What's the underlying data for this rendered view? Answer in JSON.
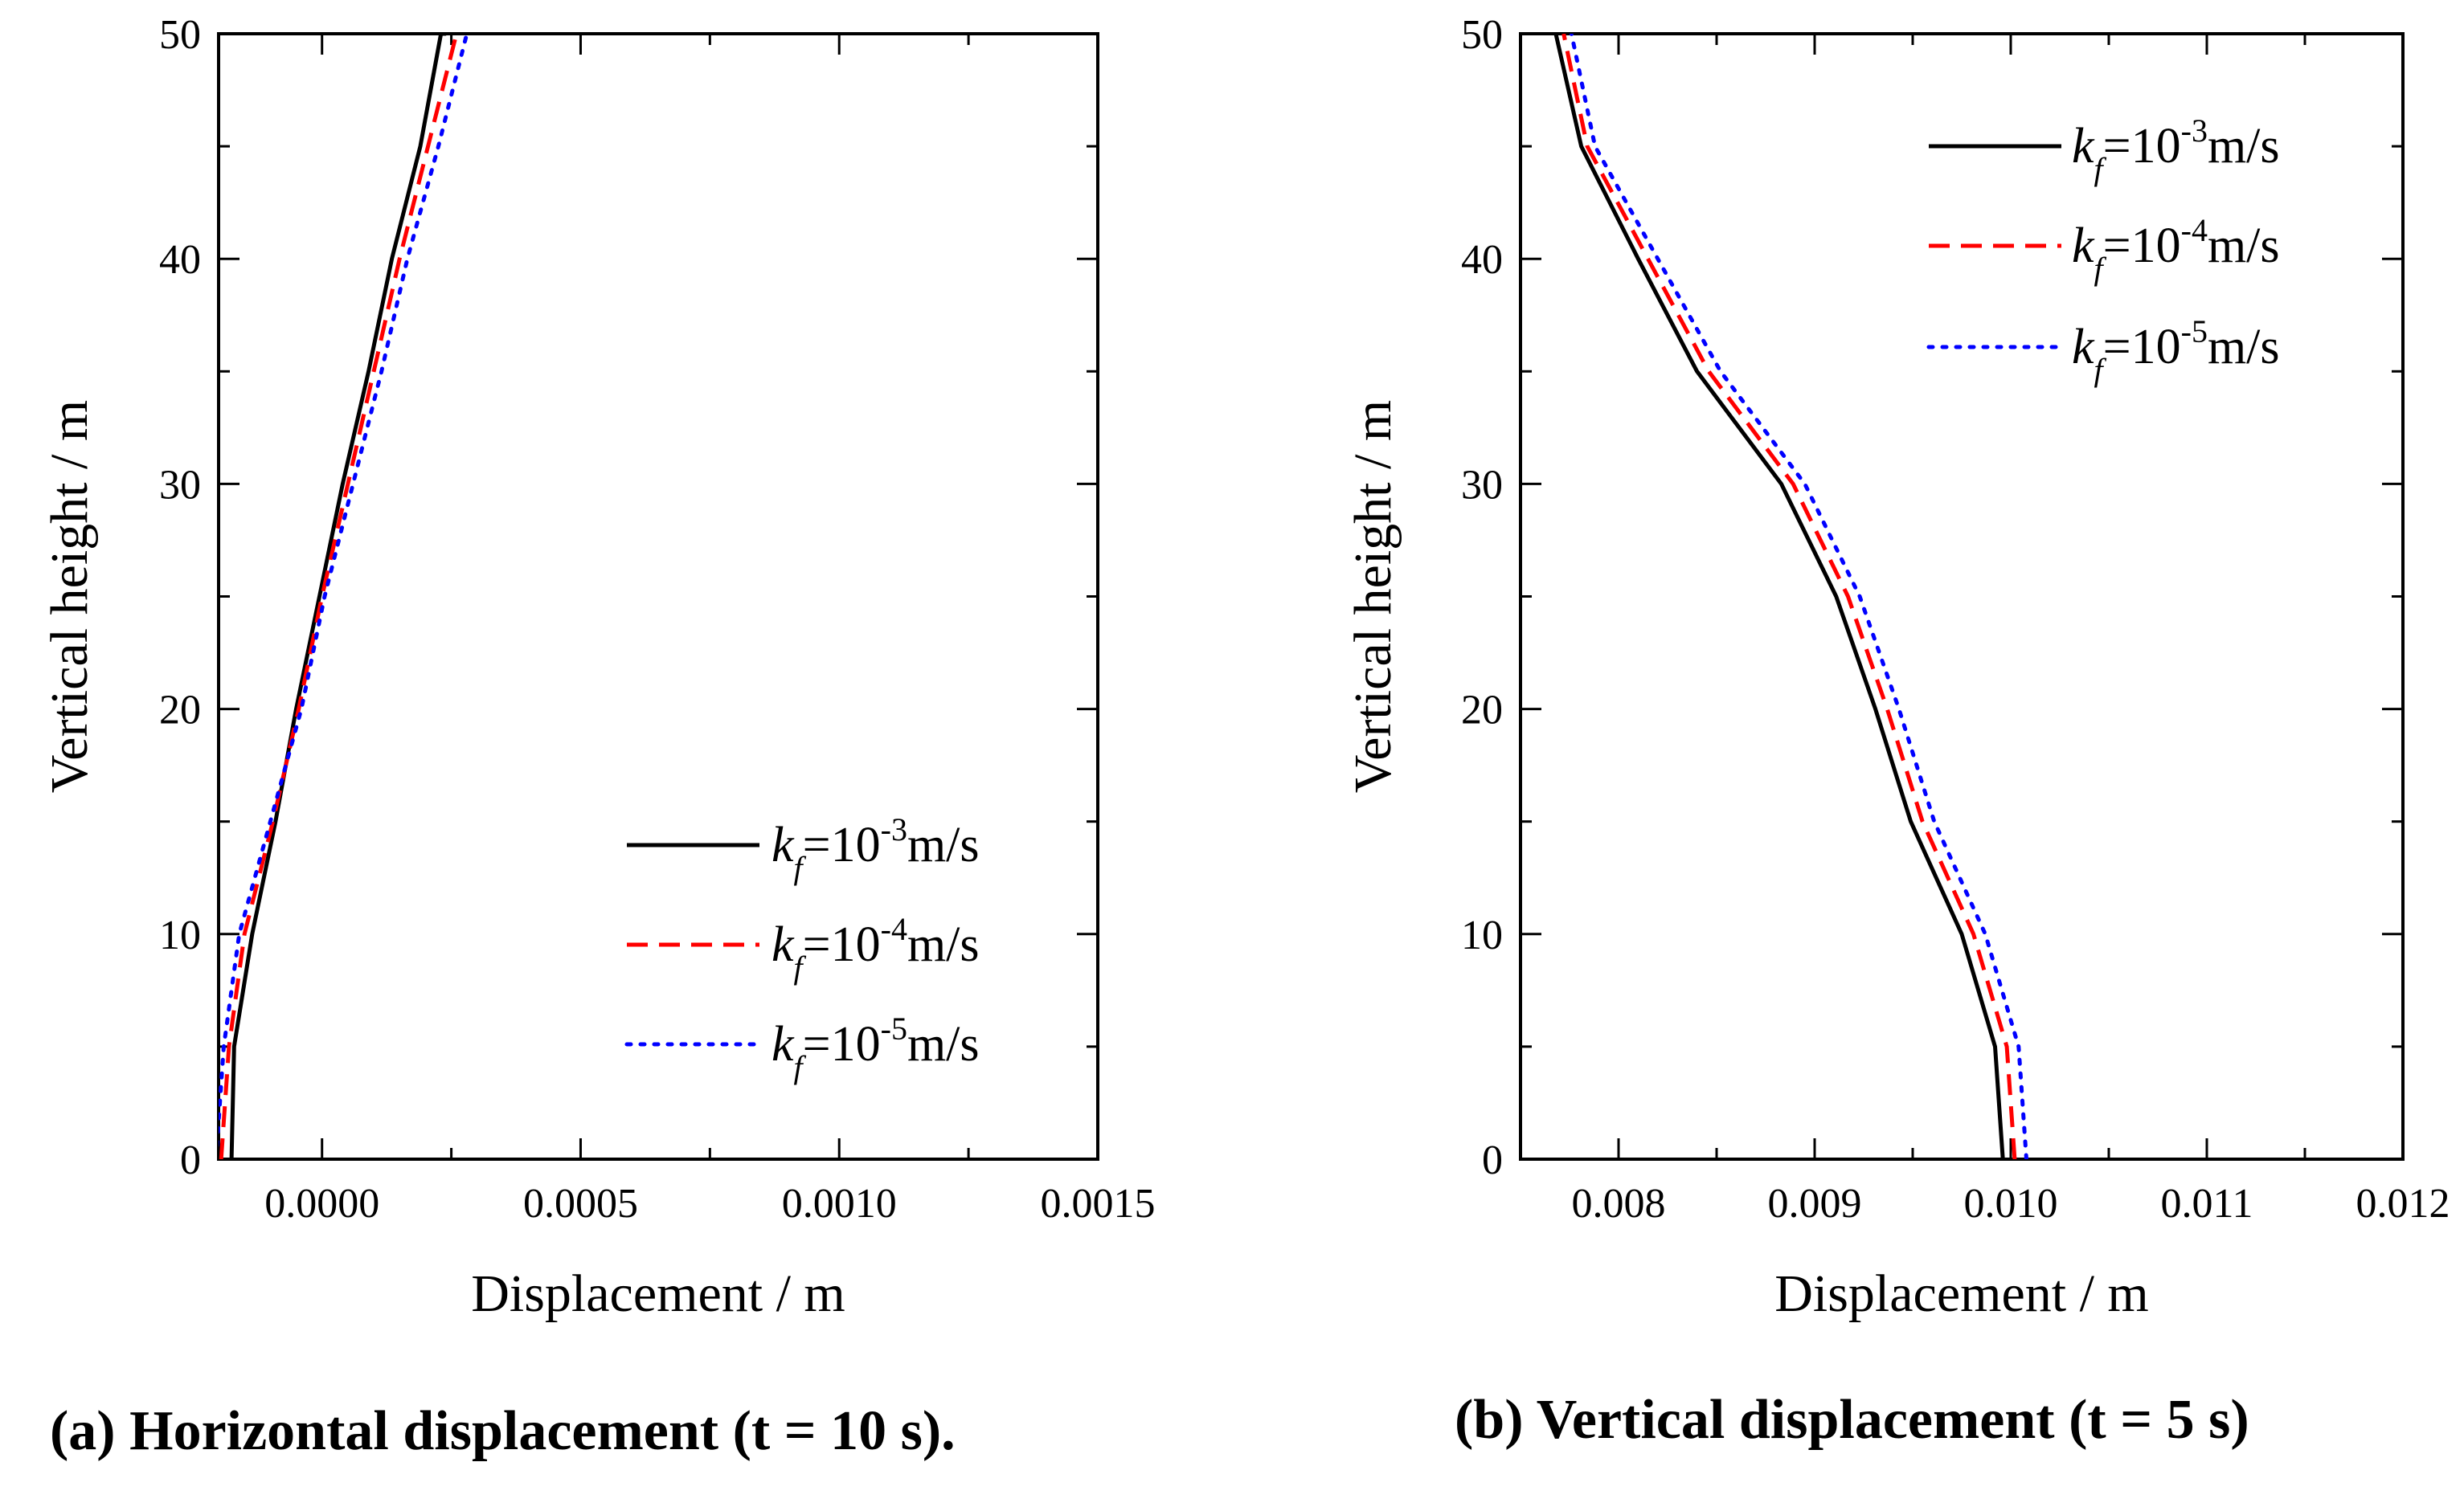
{
  "colors": {
    "black": "#000000",
    "red": "#ff0000",
    "blue": "#0000ff"
  },
  "legend_labels": [
    {
      "prefix": "k",
      "sub": "f",
      "base": "=10",
      "exp": "-3",
      "unit": "m/s"
    },
    {
      "prefix": "k",
      "sub": "f",
      "base": "=10",
      "exp": "-4",
      "unit": "m/s"
    },
    {
      "prefix": "k",
      "sub": "f",
      "base": "=10",
      "exp": "-5",
      "unit": "m/s"
    }
  ],
  "chart_data": [
    {
      "type": "line",
      "caption": "(a) Horizontal displacement (t = 10 s).",
      "xlabel": "Displacement / m",
      "ylabel": "Vertical height / m",
      "xlim": [
        -0.0002,
        0.0015
      ],
      "ylim": [
        0,
        50
      ],
      "xticks": [
        "0.0000",
        "0.0005",
        "0.0010",
        "0.0015"
      ],
      "xtick_values": [
        0.0,
        0.0005,
        0.001,
        0.0015
      ],
      "yticks": [
        "0",
        "10",
        "20",
        "30",
        "40",
        "50"
      ],
      "ytick_values": [
        0,
        10,
        20,
        30,
        40,
        50
      ],
      "legend_position": "bottom-right",
      "series": [
        {
          "name": "k_f=10^-3 m/s",
          "style": "solid",
          "color": "#000000",
          "x": [
            -0.000175,
            -0.00017,
            -0.000135,
            -9e-05,
            -5e-05,
            -5e-06,
            4e-05,
            9e-05,
            0.000135,
            0.00019,
            0.00023,
            0.00024
          ],
          "y": [
            0,
            5,
            10,
            15,
            20,
            25,
            30,
            35,
            40,
            45,
            50,
            50
          ]
        },
        {
          "name": "k_f=10^-4 m/s",
          "style": "dashed",
          "color": "#ff0000",
          "x": [
            -0.000195,
            -0.00018,
            -0.00015,
            -9.5e-05,
            -4.5e-05,
            0.0,
            5e-05,
            0.0001,
            0.00015,
            0.000205,
            0.00026
          ],
          "y": [
            0,
            5,
            10,
            15,
            20,
            25,
            30,
            35,
            40,
            45,
            50
          ]
        },
        {
          "name": "k_f=10^-5 m/s",
          "style": "dotted",
          "color": "#0000ff",
          "x": [
            -0.000205,
            -0.00019,
            -0.00016,
            -0.0001,
            -4e-05,
            5e-06,
            6e-05,
            0.000115,
            0.000165,
            0.000225,
            0.00028
          ],
          "y": [
            0,
            5,
            10,
            15,
            20,
            25,
            30,
            35,
            40,
            45,
            50
          ]
        }
      ]
    },
    {
      "type": "line",
      "caption": "(b) Vertical displacement (t = 5 s)",
      "xlabel": "Displacement / m",
      "ylabel": "Vertical height / m",
      "xlim": [
        0.0075,
        0.012
      ],
      "ylim": [
        0,
        50
      ],
      "xticks": [
        "0.008",
        "0.009",
        "0.010",
        "0.011",
        "0.012"
      ],
      "xtick_values": [
        0.008,
        0.009,
        0.01,
        0.011,
        0.012
      ],
      "yticks": [
        "0",
        "10",
        "20",
        "30",
        "40",
        "50"
      ],
      "ytick_values": [
        0,
        10,
        20,
        30,
        40,
        50
      ],
      "legend_position": "top-right",
      "series": [
        {
          "name": "k_f=10^-3 m/s",
          "style": "solid",
          "color": "#000000",
          "x": [
            0.00996,
            0.00992,
            0.00975,
            0.00949,
            0.00931,
            0.00911,
            0.00883,
            0.0084,
            0.0081,
            0.00781,
            0.00768
          ],
          "y": [
            0,
            5,
            10,
            15,
            20,
            25,
            30,
            35,
            40,
            45,
            50
          ]
        },
        {
          "name": "k_f=10^-4 m/s",
          "style": "dashed",
          "color": "#ff0000",
          "x": [
            0.01002,
            0.00998,
            0.00981,
            0.00955,
            0.00937,
            0.00917,
            0.00889,
            0.00846,
            0.00815,
            0.00784,
            0.00772
          ],
          "y": [
            0,
            5,
            10,
            15,
            20,
            25,
            30,
            35,
            40,
            45,
            50
          ]
        },
        {
          "name": "k_f=10^-5 m/s",
          "style": "dotted",
          "color": "#0000ff",
          "x": [
            0.01008,
            0.01004,
            0.00987,
            0.00961,
            0.00943,
            0.00923,
            0.00895,
            0.00852,
            0.0082,
            0.00788,
            0.00776
          ],
          "y": [
            0,
            5,
            10,
            15,
            20,
            25,
            30,
            35,
            40,
            45,
            50
          ]
        }
      ]
    }
  ]
}
